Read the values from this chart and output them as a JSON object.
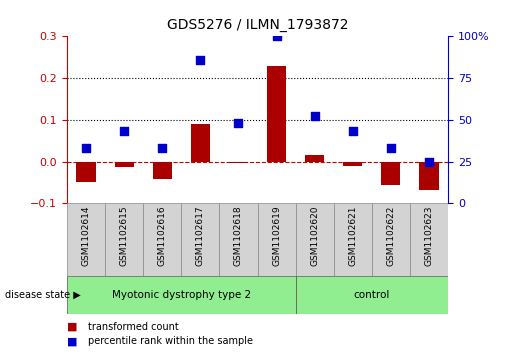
{
  "title": "GDS5276 / ILMN_1793872",
  "samples": [
    "GSM1102614",
    "GSM1102615",
    "GSM1102616",
    "GSM1102617",
    "GSM1102618",
    "GSM1102619",
    "GSM1102620",
    "GSM1102621",
    "GSM1102622",
    "GSM1102623"
  ],
  "transformed_count": [
    -0.05,
    -0.012,
    -0.042,
    0.09,
    -0.004,
    0.23,
    0.016,
    -0.01,
    -0.057,
    -0.068
  ],
  "percentile_rank_pct": [
    33,
    43,
    33,
    86,
    48,
    100,
    52,
    43,
    33,
    25
  ],
  "disease_groups": [
    {
      "label": "Myotonic dystrophy type 2",
      "start": 0,
      "end": 5,
      "color": "#90ee90"
    },
    {
      "label": "control",
      "start": 6,
      "end": 9,
      "color": "#90ee90"
    }
  ],
  "left_ylim": [
    -0.1,
    0.3
  ],
  "left_yticks": [
    -0.1,
    0.0,
    0.1,
    0.2,
    0.3
  ],
  "right_ylim": [
    0,
    100
  ],
  "right_yticks": [
    0,
    25,
    50,
    75,
    100
  ],
  "right_yticklabels": [
    "0",
    "25",
    "50",
    "75",
    "100%"
  ],
  "bar_color": "#aa0000",
  "dot_color": "#0000cc",
  "hline_color": "#cc0000",
  "dot_size": 35,
  "grid_color": "black",
  "grid_style": ":",
  "grid_lw": 0.8,
  "tick_label_color_left": "#cc0000",
  "tick_label_color_right": "#0000cc",
  "box_facecolor": "#d3d3d3",
  "green_color": "#90ee90",
  "n_disease": 6,
  "n_control": 4
}
